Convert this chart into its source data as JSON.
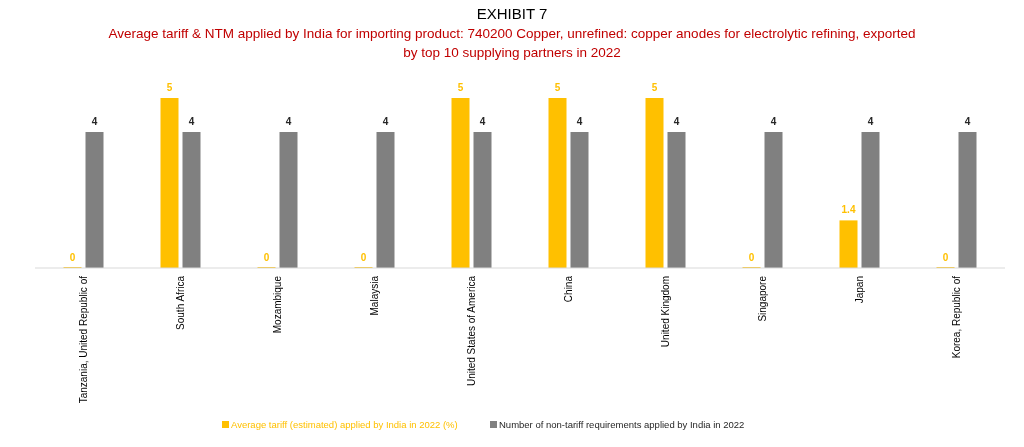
{
  "chart_data": {
    "type": "bar",
    "title": "EXHIBIT 7",
    "subtitle": "Average tariff & NTM applied by India for importing product: 740200 Copper, unrefined: copper anodes for electrolytic refining, exported by top 10 supplying partners in 2022",
    "categories": [
      "Tanzania, United Republic of",
      "South Africa",
      "Mozambique",
      "Malaysia",
      "United States of America",
      "China",
      "United Kingdom",
      "Singapore",
      "Japan",
      "Korea, Republic of"
    ],
    "series": [
      {
        "name": "Average tariff (estimated) applied by India in 2022 (%)",
        "color": "#ffc000",
        "values": [
          0,
          5,
          0,
          0,
          5,
          5,
          5,
          0,
          1.4,
          0
        ]
      },
      {
        "name": "Number of non-tariff requirements applied by India in 2022",
        "color": "#808080",
        "values": [
          4,
          4,
          4,
          4,
          4,
          4,
          4,
          4,
          4,
          4
        ]
      }
    ],
    "data_labels": true,
    "legend": "bottom",
    "grid": false
  }
}
